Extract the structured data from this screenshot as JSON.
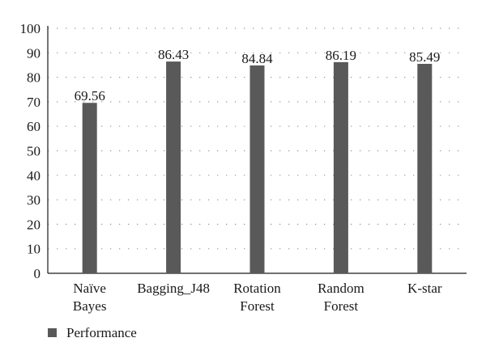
{
  "chart_data": {
    "type": "bar",
    "categories": [
      [
        "Naïve",
        "Bayes"
      ],
      [
        "Bagging_J48"
      ],
      [
        "Rotation",
        "Forest"
      ],
      [
        "Random",
        "Forest"
      ],
      [
        "K-star"
      ]
    ],
    "series": [
      {
        "name": "Performance",
        "values": [
          69.56,
          86.43,
          84.84,
          86.19,
          85.49
        ],
        "value_labels": [
          "69.56",
          "86.43",
          "84.84",
          "86.19",
          "85.49"
        ],
        "color": "#595959"
      }
    ],
    "y_ticks": [
      "0",
      "10",
      "20",
      "30",
      "40",
      "50",
      "60",
      "70",
      "80",
      "90",
      "100"
    ],
    "ylim": [
      0,
      100
    ],
    "grid": "horizontal-dotted",
    "legend_position": "bottom-left",
    "title": "",
    "xlabel": "",
    "ylabel": ""
  }
}
